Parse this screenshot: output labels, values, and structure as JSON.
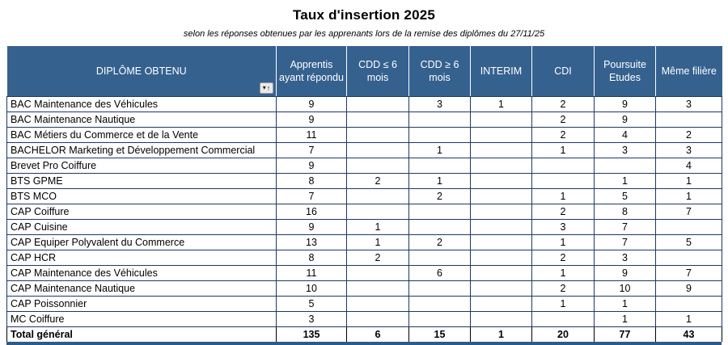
{
  "title": "Taux d'insertion 2025",
  "subtitle": "selon les réponses obtenues par les apprenants lors de la remise des diplômes du 27/11/25",
  "colors": {
    "header_bg": "#35618F",
    "grid_border": "#1F3864",
    "total_border": "#000000",
    "bottom_bar": "#2E5A87",
    "header_text": "#ffffff"
  },
  "icons": {
    "sort_filter_dropdown": "▾",
    "sort_ascending_arrow": "↑"
  },
  "table": {
    "columns": [
      "DIPLÔME OBTENU",
      "Apprentis ayant répondu",
      "CDD ≤ 6 mois",
      "CDD ≥ 6 mois",
      "INTERIM",
      "CDI",
      "Poursuite Etudes",
      "Même filière"
    ],
    "rows": [
      {
        "label": "BAC Maintenance des Véhicules",
        "values": [
          "9",
          "",
          "3",
          "1",
          "2",
          "9",
          "3"
        ]
      },
      {
        "label": "BAC Maintenance Nautique",
        "values": [
          "9",
          "",
          "",
          "",
          "2",
          "9",
          ""
        ]
      },
      {
        "label": "BAC Métiers du Commerce et de la Vente",
        "values": [
          "11",
          "",
          "",
          "",
          "2",
          "4",
          "2"
        ]
      },
      {
        "label": "BACHELOR Marketing et Développement Commercial",
        "values": [
          "7",
          "",
          "1",
          "",
          "1",
          "3",
          "3"
        ]
      },
      {
        "label": "Brevet Pro Coiffure",
        "values": [
          "9",
          "",
          "",
          "",
          "",
          "",
          "4"
        ]
      },
      {
        "label": "BTS GPME",
        "values": [
          "8",
          "2",
          "1",
          "",
          "",
          "1",
          "1"
        ]
      },
      {
        "label": "BTS MCO",
        "values": [
          "7",
          "",
          "2",
          "",
          "1",
          "5",
          "1"
        ]
      },
      {
        "label": "CAP Coiffure",
        "values": [
          "16",
          "",
          "",
          "",
          "2",
          "8",
          "7"
        ]
      },
      {
        "label": "CAP Cuisine",
        "values": [
          "9",
          "1",
          "",
          "",
          "3",
          "7",
          ""
        ]
      },
      {
        "label": "CAP Equiper Polyvalent du Commerce",
        "values": [
          "13",
          "1",
          "2",
          "",
          "1",
          "7",
          "5"
        ]
      },
      {
        "label": "CAP HCR",
        "values": [
          "8",
          "2",
          "",
          "",
          "2",
          "3",
          ""
        ]
      },
      {
        "label": "CAP Maintenance des Véhicules",
        "values": [
          "11",
          "",
          "6",
          "",
          "1",
          "9",
          "7"
        ]
      },
      {
        "label": "CAP Maintenance Nautique",
        "values": [
          "10",
          "",
          "",
          "",
          "2",
          "10",
          "9"
        ]
      },
      {
        "label": "CAP Poissonnier",
        "values": [
          "5",
          "",
          "",
          "",
          "1",
          "1",
          ""
        ]
      },
      {
        "label": "MC Coiffure",
        "values": [
          "3",
          "",
          "",
          "",
          "",
          "1",
          "1"
        ]
      }
    ],
    "total": {
      "label": "Total général",
      "values": [
        "135",
        "6",
        "15",
        "1",
        "20",
        "77",
        "43"
      ]
    }
  }
}
